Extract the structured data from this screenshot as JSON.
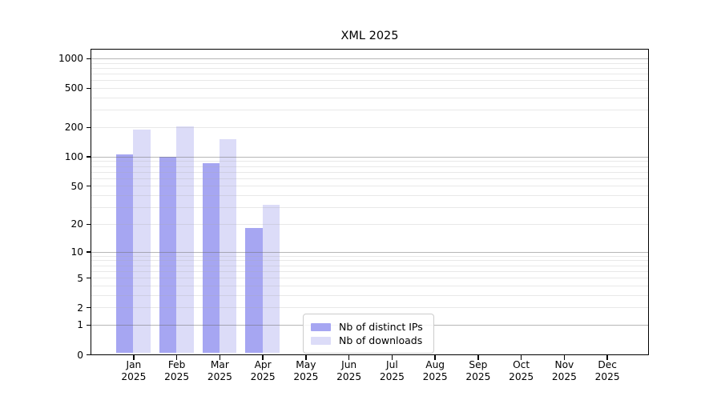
{
  "page": {
    "background": "#ffffff"
  },
  "chart_data": {
    "type": "bar",
    "title": "XML 2025",
    "scale": "log1p",
    "ylim": [
      0,
      1260
    ],
    "grid": true,
    "legend_position": "bottom-center",
    "y_ticks": [
      0,
      1,
      2,
      5,
      10,
      20,
      50,
      100,
      200,
      500,
      1000
    ],
    "y_minor_ticks": [
      3,
      4,
      6,
      7,
      8,
      9,
      30,
      40,
      60,
      70,
      80,
      90,
      300,
      400,
      600,
      700,
      800,
      900
    ],
    "categories": [
      {
        "month": "Jan",
        "year": "2025"
      },
      {
        "month": "Feb",
        "year": "2025"
      },
      {
        "month": "Mar",
        "year": "2025"
      },
      {
        "month": "Apr",
        "year": "2025"
      },
      {
        "month": "May",
        "year": "2025"
      },
      {
        "month": "Jun",
        "year": "2025"
      },
      {
        "month": "Jul",
        "year": "2025"
      },
      {
        "month": "Aug",
        "year": "2025"
      },
      {
        "month": "Sep",
        "year": "2025"
      },
      {
        "month": "Oct",
        "year": "2025"
      },
      {
        "month": "Nov",
        "year": "2025"
      },
      {
        "month": "Dec",
        "year": "2025"
      }
    ],
    "series": [
      {
        "name": "Nb of distinct IPs",
        "color": "#a6a6f2",
        "values": [
          105,
          100,
          85,
          18,
          0,
          0,
          0,
          0,
          0,
          0,
          0,
          0
        ]
      },
      {
        "name": "Nb of downloads",
        "color": "#dcdcf8",
        "values": [
          190,
          205,
          150,
          32,
          0,
          0,
          0,
          0,
          0,
          0,
          0,
          0
        ]
      }
    ],
    "colors": {
      "major_grid": "rgba(110,110,110,0.50)",
      "minor_grid": "rgba(172,172,172,0.28)",
      "axis": "#000000",
      "text": "#000000"
    }
  }
}
